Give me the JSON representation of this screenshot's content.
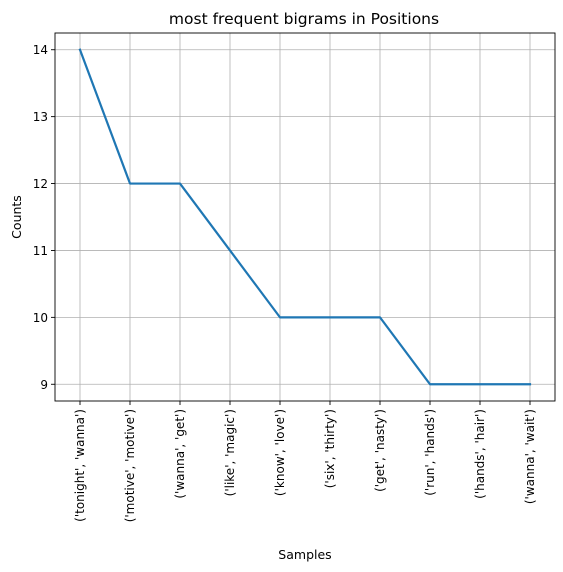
{
  "chart_data": {
    "type": "line",
    "title": "most frequent bigrams in Positions",
    "xlabel": "Samples",
    "ylabel": "Counts",
    "categories": [
      "('tonight', 'wanna')",
      "('motive', 'motive')",
      "('wanna', 'get')",
      "('like', 'magic')",
      "('know', 'love')",
      "('six', 'thirty')",
      "('get', 'nasty')",
      "('run', 'hands')",
      "('hands', 'hair')",
      "('wanna', 'wait')"
    ],
    "values": [
      14,
      12,
      12,
      11,
      10,
      10,
      10,
      9,
      9,
      9
    ],
    "ylim": [
      8.75,
      14.25
    ],
    "yticks": [
      9,
      10,
      11,
      12,
      13,
      14
    ],
    "grid": true,
    "line_color": "#1f77b4",
    "grid_color": "#b0b0b0"
  }
}
